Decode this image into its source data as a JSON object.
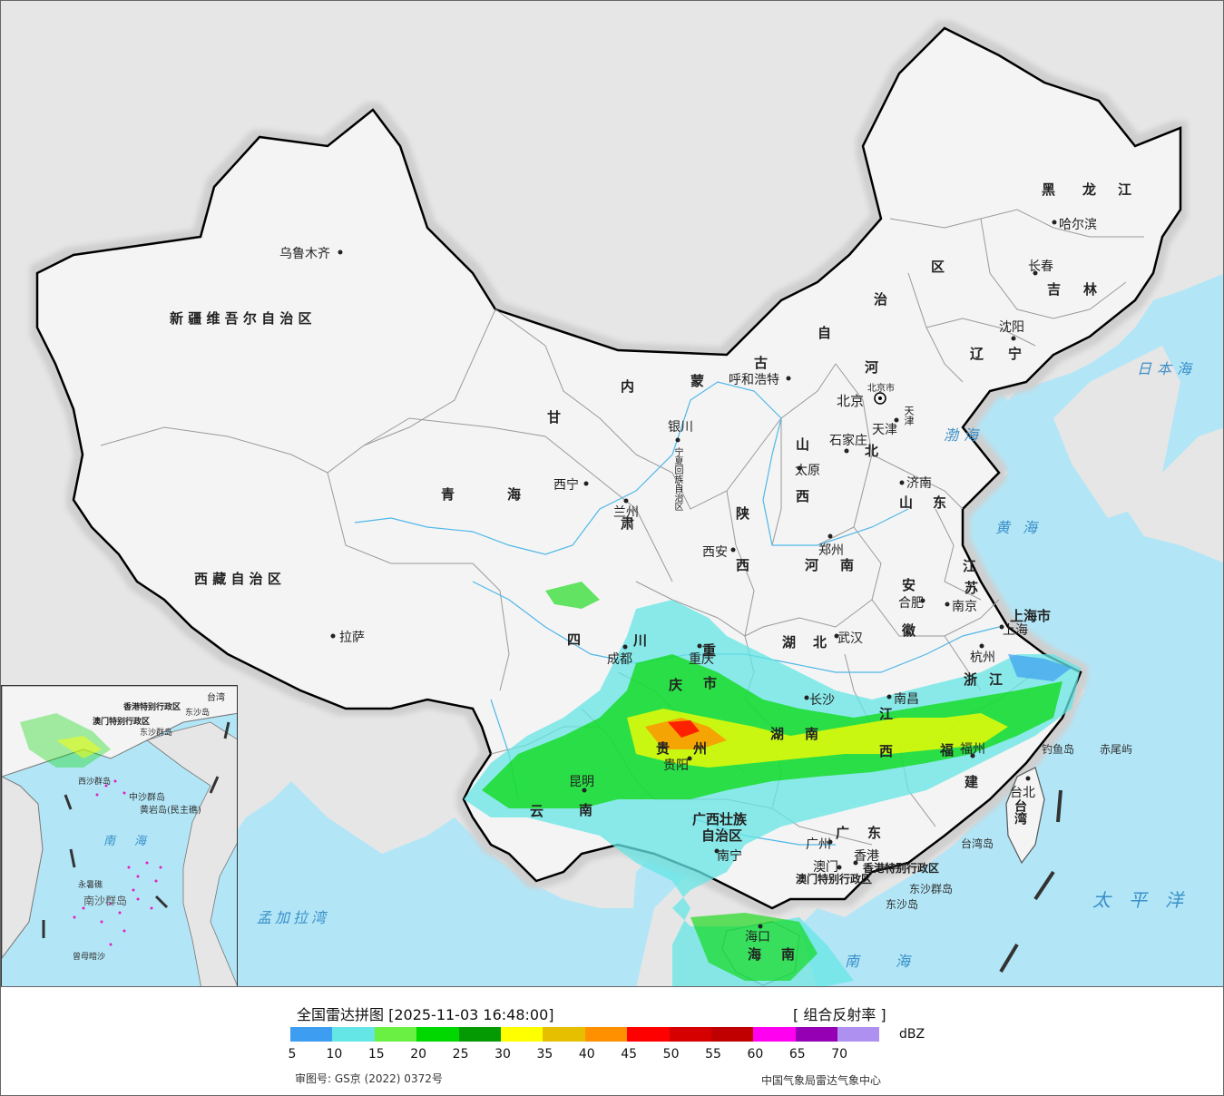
{
  "header": {
    "title": "全国雷达拼图 [2025-11-03 16:48:00]",
    "product": "[ 组合反射率 ]",
    "unit": "dBZ"
  },
  "colorbar": {
    "colors": [
      "#3d9df0",
      "#65e6e6",
      "#6af042",
      "#00d800",
      "#049a04",
      "#ffff00",
      "#e6c000",
      "#ff9000",
      "#ff0000",
      "#d60000",
      "#c00000",
      "#ff00f0",
      "#9600b4",
      "#ad90f0"
    ],
    "ticks": [
      "5",
      "10",
      "15",
      "20",
      "25",
      "30",
      "35",
      "40",
      "45",
      "50",
      "55",
      "60",
      "65",
      "70"
    ]
  },
  "footer": {
    "approval": "审图号: GS京 (2022) 0372号",
    "source": "中国气象局雷达气象中心"
  },
  "map": {
    "colors": {
      "sea": "#b2e6f7",
      "land_outside": "#e6e6e6",
      "china": "#f4f4f4",
      "border": "#000000",
      "province": "#9a9a9a",
      "river": "#4fb8e8"
    },
    "provinces": [
      "新 疆 维 吾 尔 自 治 区",
      "西 藏 自 治 区",
      "青",
      "海",
      "甘",
      "肃",
      "内",
      "蒙",
      "古",
      "自",
      "治",
      "区",
      "黑",
      "龙",
      "江",
      "吉",
      "林",
      "辽",
      "宁",
      "河",
      "北",
      "山",
      "西",
      "陕",
      "西",
      "河",
      "南",
      "山",
      "东",
      "江",
      "苏",
      "安",
      "徽",
      "浙",
      "江",
      "四",
      "川",
      "重",
      "庆",
      "市",
      "贵",
      "州",
      "湖",
      "北",
      "湖",
      "南",
      "江",
      "西",
      "福",
      "建",
      "云",
      "南",
      "广西壮族",
      "自治区",
      "广",
      "东",
      "海",
      "南",
      "台湾",
      "上海市",
      "天津",
      "北京市",
      "宁夏回族自治区"
    ],
    "cities": [
      "乌鲁木齐",
      "拉萨",
      "西宁",
      "兰州",
      "银川",
      "呼和浩特",
      "北京",
      "天津",
      "石家庄",
      "太原",
      "济南",
      "郑州",
      "西安",
      "成都",
      "重庆",
      "武汉",
      "合肥",
      "南京",
      "上海",
      "杭州",
      "长沙",
      "南昌",
      "福州",
      "贵阳",
      "昆明",
      "南宁",
      "广州",
      "澳门",
      "香港",
      "海口",
      "台北",
      "哈尔滨",
      "长春",
      "沈阳"
    ],
    "seas": [
      "日本海",
      "渤海",
      "黄海",
      "太平洋",
      "南海",
      "孟加拉湾"
    ],
    "islands": [
      "钓鱼岛",
      "赤尾屿",
      "台湾岛",
      "东沙群岛",
      "东沙岛",
      "香港特别行政区",
      "澳门特别行政区"
    ],
    "inset": [
      "南",
      "海",
      "中沙群岛",
      "黄岩岛(民主礁)",
      "永暑礁",
      "南沙群岛",
      "曾母暗沙",
      "西沙群岛",
      "东沙群岛",
      "香港特别行政区",
      "澳门特别行政区",
      "台湾",
      "东沙岛"
    ]
  }
}
